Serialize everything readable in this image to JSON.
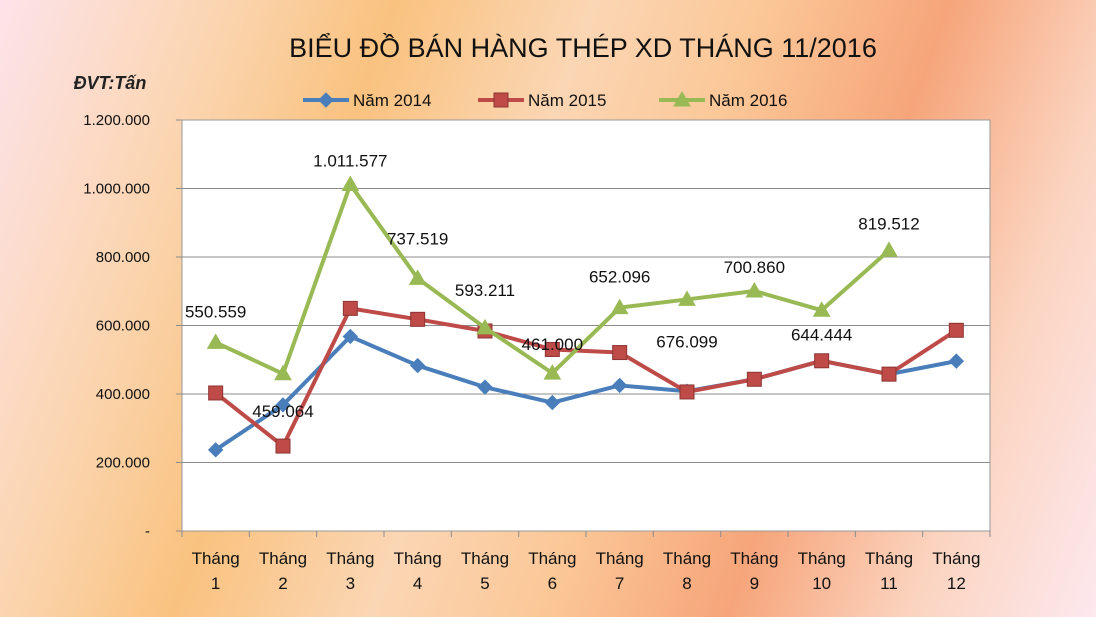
{
  "chart_data": {
    "type": "line",
    "title": "BIỂU ĐỒ BÁN HÀNG THÉP XD THÁNG 11/2016",
    "unit_label": "ĐVT:Tấn",
    "categories": [
      [
        "Tháng",
        "1"
      ],
      [
        "Tháng",
        "2"
      ],
      [
        "Tháng",
        "3"
      ],
      [
        "Tháng",
        "4"
      ],
      [
        "Tháng",
        "5"
      ],
      [
        "Tháng",
        "6"
      ],
      [
        "Tháng",
        "7"
      ],
      [
        "Tháng",
        "8"
      ],
      [
        "Tháng",
        "9"
      ],
      [
        "Tháng",
        "10"
      ],
      [
        "Tháng",
        "11"
      ],
      [
        "Tháng",
        "12"
      ]
    ],
    "ylim": [
      0,
      1200000
    ],
    "yticks": [
      "-",
      "200.000",
      "400.000",
      "600.000",
      "800.000",
      "1.000.000",
      "1.200.000"
    ],
    "ytick_values": [
      0,
      200000,
      400000,
      600000,
      800000,
      1000000,
      1200000
    ],
    "grid": true,
    "legend_position": "top",
    "series": [
      {
        "name": "Năm 2014",
        "color": "#4a7ebb",
        "marker": "diamond",
        "values": [
          237000,
          368000,
          568000,
          483000,
          420000,
          375000,
          425000,
          408000,
          443000,
          497000,
          458000,
          496000
        ]
      },
      {
        "name": "Năm 2015",
        "color": "#be4b48",
        "marker": "square",
        "values": [
          403000,
          248000,
          650000,
          618000,
          584000,
          530000,
          521000,
          406000,
          443000,
          497000,
          458000,
          586000
        ]
      },
      {
        "name": "Năm 2016",
        "color": "#98b954",
        "marker": "triangle",
        "values": [
          550559,
          459064,
          1011577,
          737519,
          593211,
          461000,
          652096,
          676099,
          700860,
          644444,
          819512,
          null
        ],
        "data_labels": [
          "550.559",
          "459.064",
          "1.011.577",
          "737.519",
          "593.211",
          "461.000",
          "652.096",
          "676.099",
          "700.860",
          "644.444",
          "819.512",
          ""
        ]
      }
    ]
  }
}
